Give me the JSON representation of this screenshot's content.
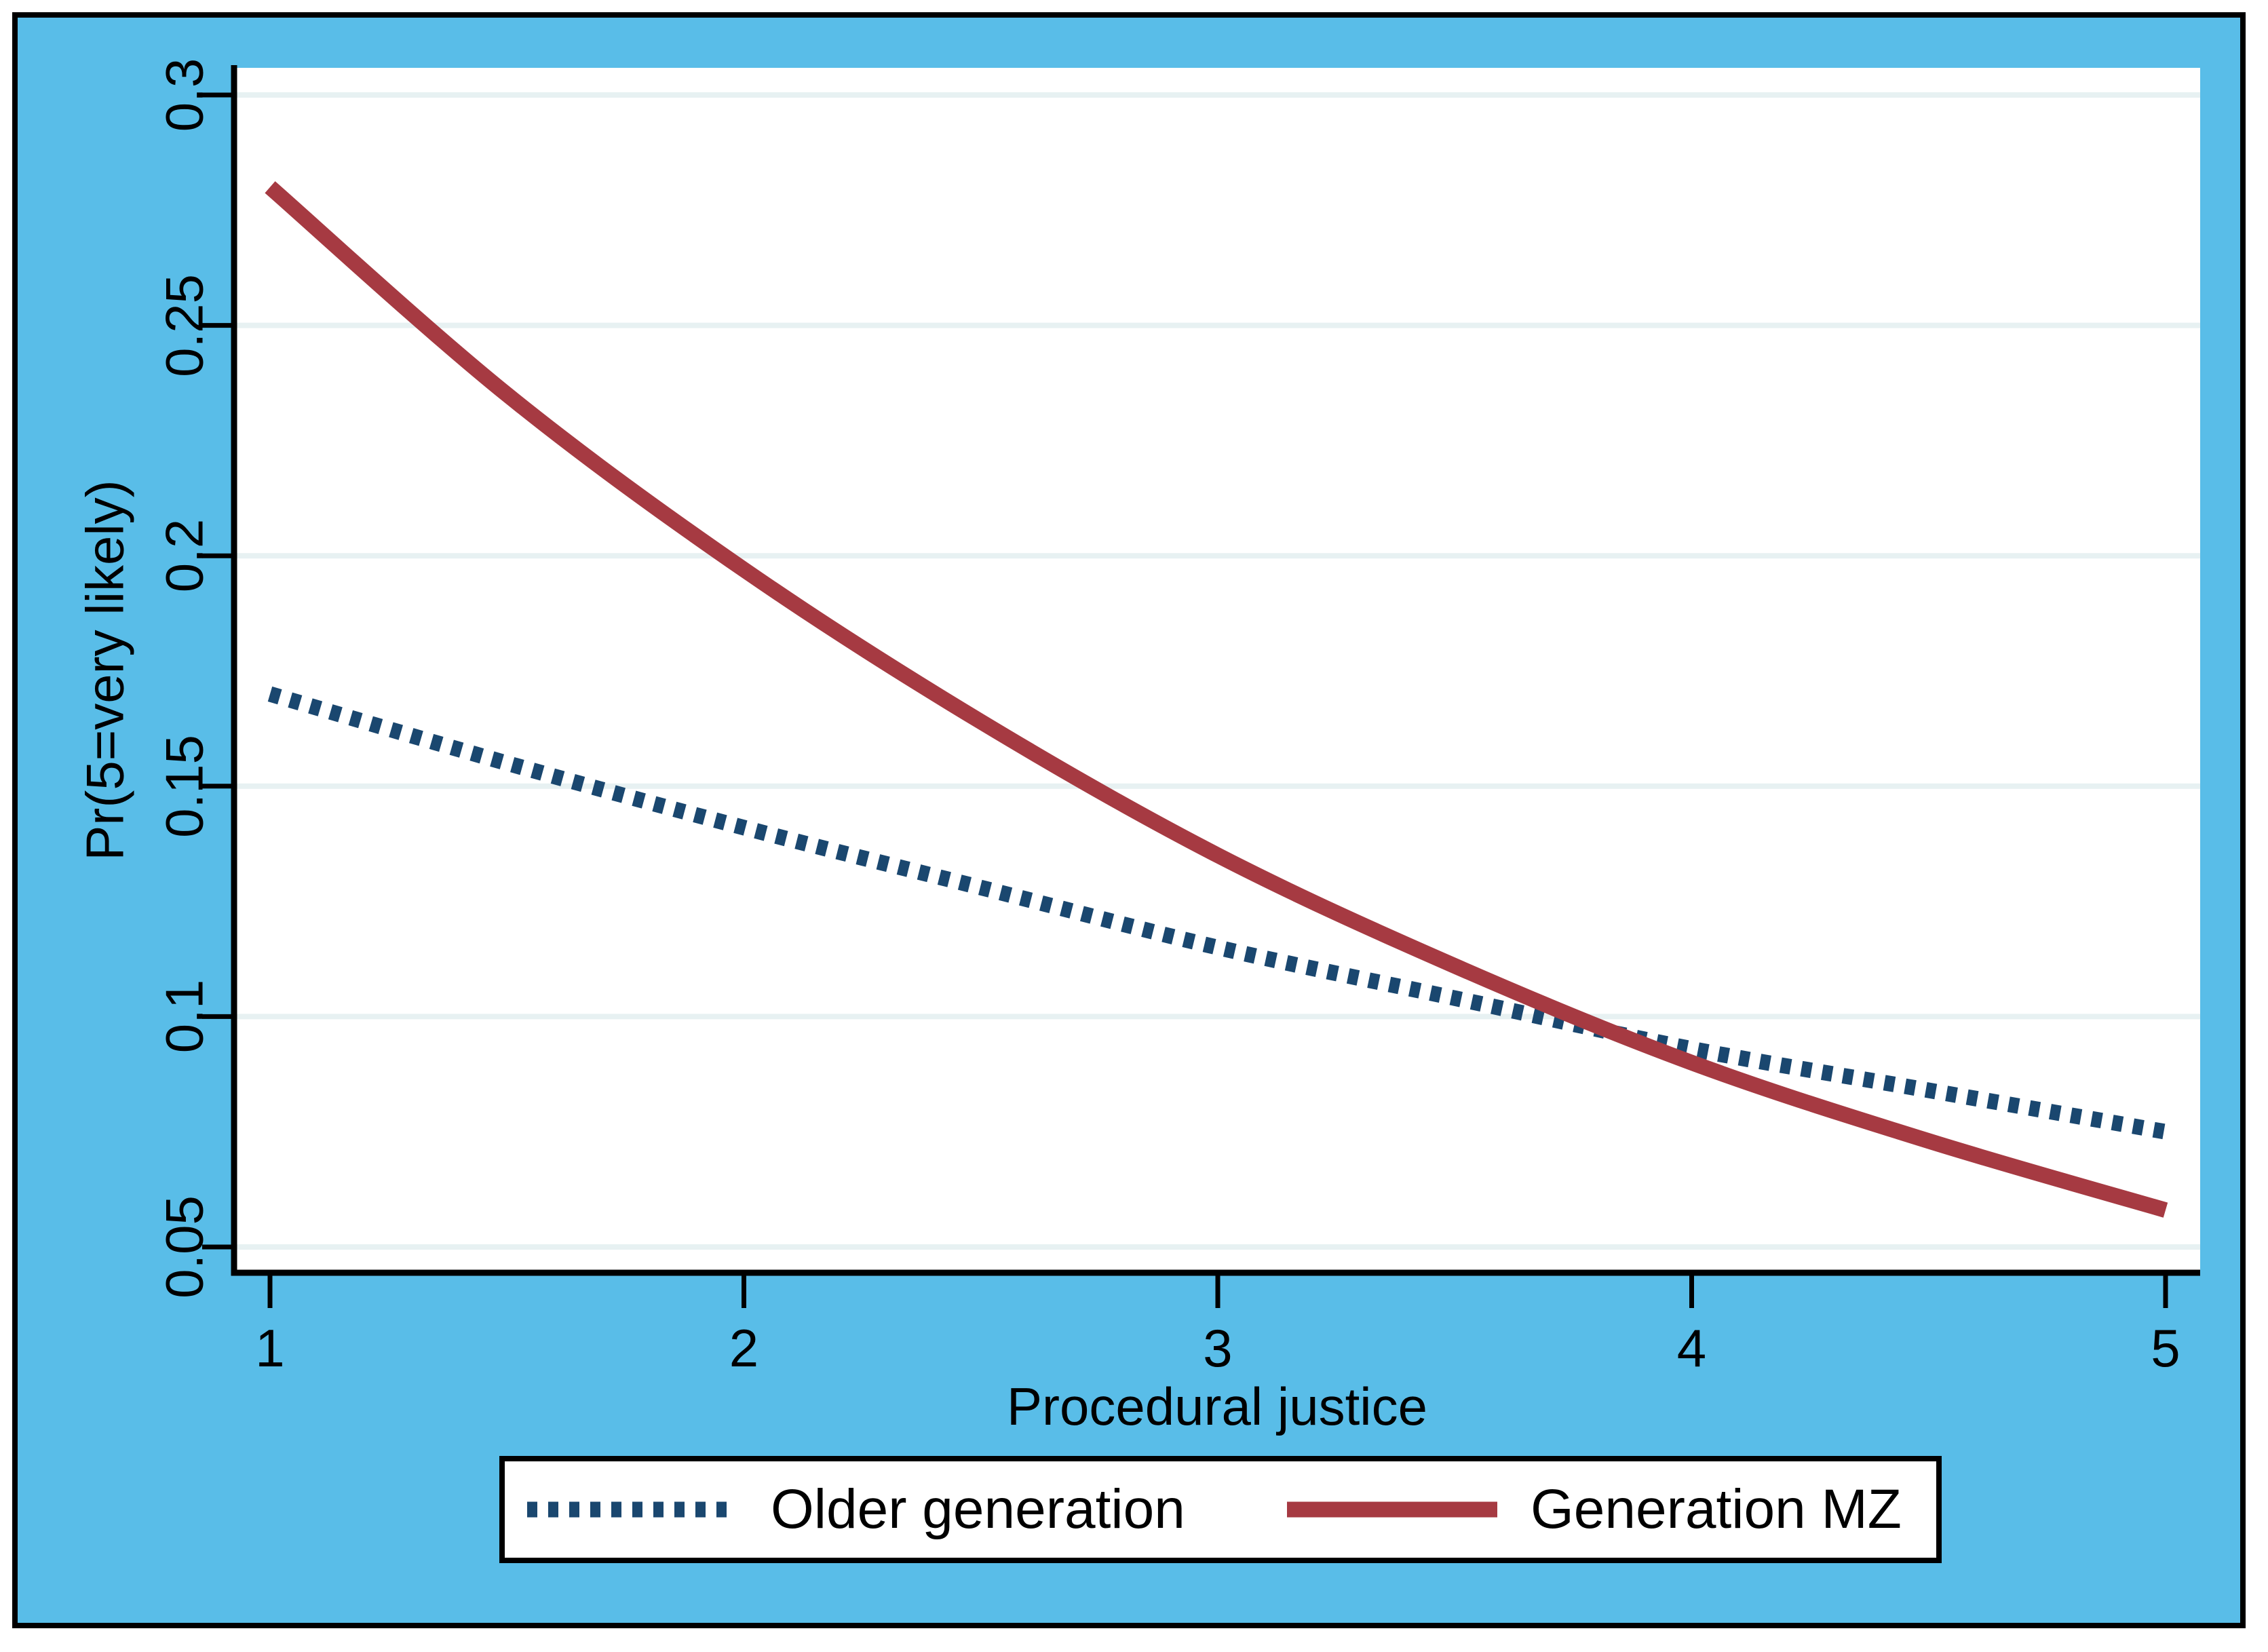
{
  "colors": {
    "canvas_background": "#59BDE8",
    "plot_background": "#FFFFFF",
    "gridline": "#E7F1F2",
    "axis": "#000000",
    "text": "#000000",
    "legend_background": "#FFFFFF",
    "legend_border": "#000000"
  },
  "chart_data": {
    "type": "line",
    "title": "",
    "xlabel": "Procedural justice",
    "ylabel": "Pr(5=very likely)",
    "xlim": [
      1,
      5
    ],
    "ylim": [
      0.05,
      0.3
    ],
    "grid": true,
    "legend_position": "bottom",
    "x_ticks": [
      1,
      2,
      3,
      4,
      5
    ],
    "x_tick_labels": [
      "1",
      "2",
      "3",
      "4",
      "5"
    ],
    "y_ticks": [
      0.05,
      0.1,
      0.15,
      0.2,
      0.25,
      0.3
    ],
    "y_tick_labels": [
      "0.05",
      "0.1",
      "0.15",
      "0.2",
      "0.25",
      "0.3"
    ],
    "series": [
      {
        "name": "Older generation",
        "color": "#1A476F",
        "style": "dotted",
        "x": [
          1,
          1.5,
          2,
          2.5,
          3,
          3.5,
          4,
          4.5,
          5
        ],
        "values": [
          0.17,
          0.155,
          0.141,
          0.128,
          0.115,
          0.104,
          0.093,
          0.084,
          0.075
        ]
      },
      {
        "name": "Generation MZ",
        "color": "#A63A42",
        "style": "solid",
        "x": [
          1,
          1.5,
          2,
          2.5,
          3,
          3.5,
          4,
          4.5,
          5
        ],
        "values": [
          0.28,
          0.235,
          0.197,
          0.164,
          0.135,
          0.111,
          0.09,
          0.073,
          0.058
        ]
      }
    ]
  }
}
